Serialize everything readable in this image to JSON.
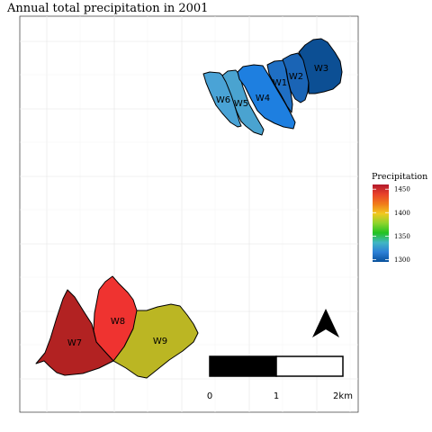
{
  "title": "Annual total precipitation in 2001",
  "legend": {
    "title": "Precipitation",
    "ticks": [
      "1450",
      "1400",
      "1350",
      "1300"
    ],
    "range": [
      1295,
      1460
    ],
    "colors_top_to_bottom": [
      "#b2182b",
      "#e8412a",
      "#f07a1a",
      "#f2c81e",
      "#8ed42c",
      "#22c322",
      "#41b6c4",
      "#2c7fd6",
      "#08519c"
    ]
  },
  "sheets": [
    {
      "id": "W1",
      "label": "W1",
      "color": "#1f6fc4"
    },
    {
      "id": "W2",
      "label": "W2",
      "color": "#1a64b5"
    },
    {
      "id": "W3",
      "label": "W3",
      "color": "#0c4f94"
    },
    {
      "id": "W4",
      "label": "W4",
      "color": "#1e7fe0"
    },
    {
      "id": "W5",
      "label": "W5",
      "color": "#4aa3d0"
    },
    {
      "id": "W6",
      "label": "W6",
      "color": "#4aa3d6"
    },
    {
      "id": "W7",
      "label": "W7",
      "color": "#b22222"
    },
    {
      "id": "W8",
      "label": "W8",
      "color": "#ef3330"
    },
    {
      "id": "W9",
      "label": "W9",
      "color": "#bbb623"
    }
  ],
  "scale_bar": {
    "labels": [
      "0",
      "1",
      "2km"
    ]
  },
  "north_arrow": "north-arrow-icon",
  "panel": {
    "background": "#ffffff",
    "grid": true,
    "grid_color": "#ebebeb"
  }
}
